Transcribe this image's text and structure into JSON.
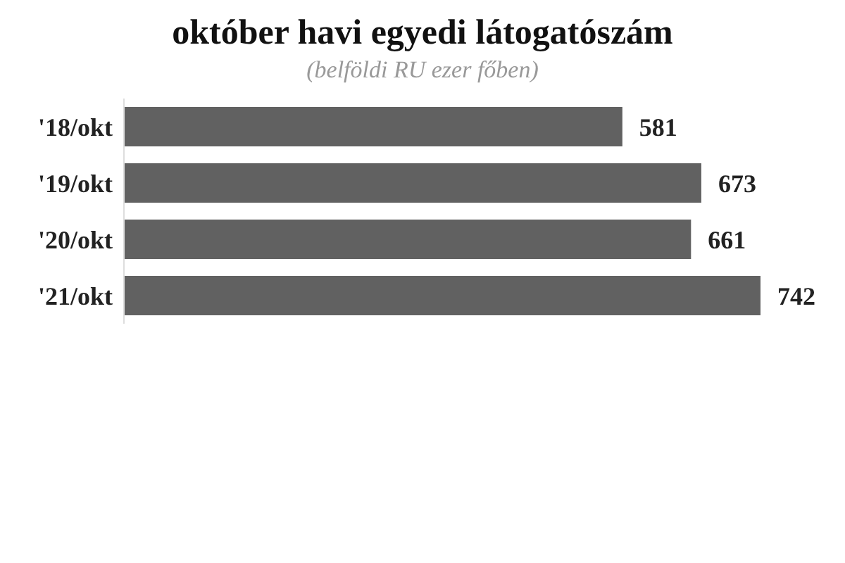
{
  "chart_data": {
    "type": "bar",
    "orientation": "horizontal",
    "title": "október havi egyedi látogatószám",
    "subtitle": "(belföldi RU ezer főben)",
    "categories": [
      "'18/okt",
      "'19/okt",
      "'20/okt",
      "'21/okt"
    ],
    "values": [
      581,
      673,
      661,
      742
    ],
    "color": "#616161",
    "data_labels": true,
    "tick_labels": "y",
    "grid": false,
    "legend": false
  }
}
